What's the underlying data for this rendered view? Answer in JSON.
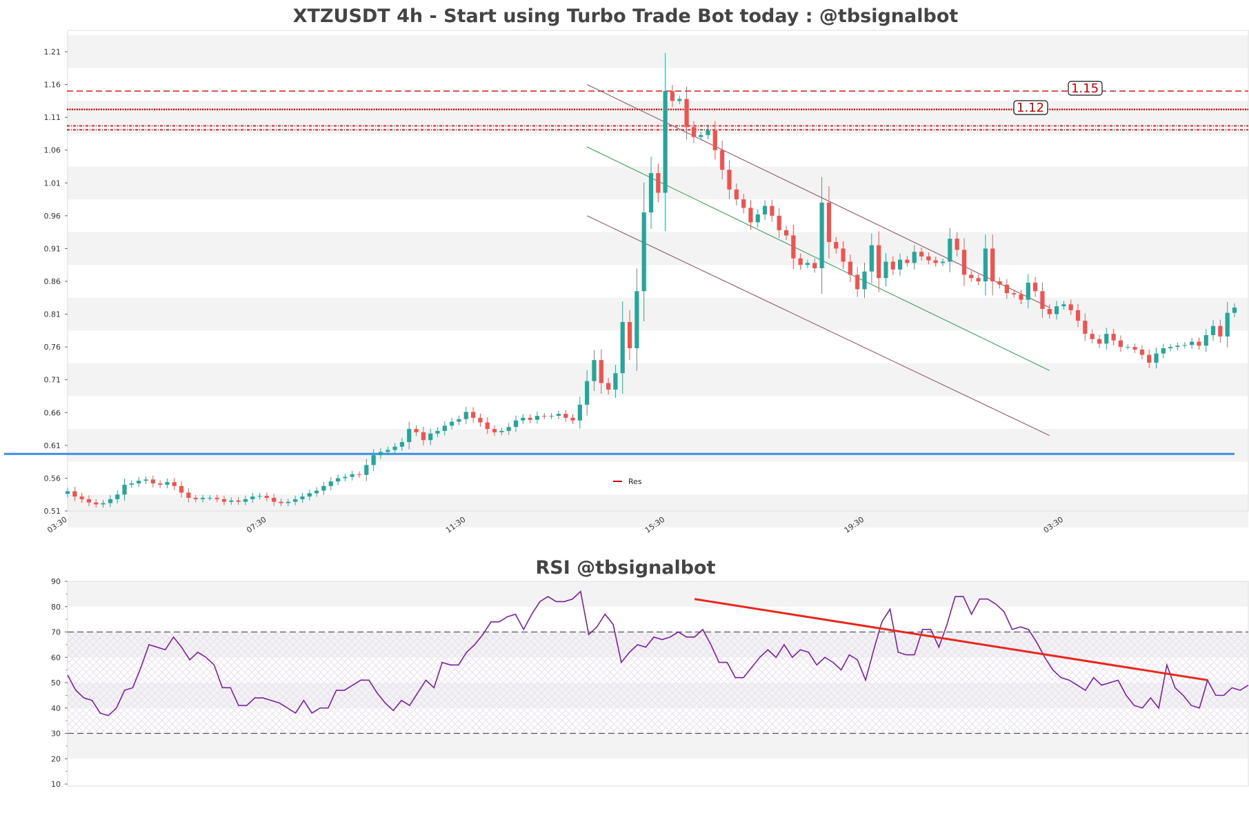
{
  "chart_data": [
    {
      "type": "candlestick",
      "title": "XTZUSDT 4h - Start using Turbo Trade Bot today : @tbsignalbot",
      "xlabel": "",
      "ylabel": "",
      "ylim": [
        0.51,
        1.24
      ],
      "y_ticks": [
        "1.21",
        "1.16",
        "1.11",
        "1.06",
        "1.01",
        "0.96",
        "0.91",
        "0.86",
        "0.81",
        "0.76",
        "0.71",
        "0.66",
        "0.61",
        "0.56",
        "0.51"
      ],
      "x_ticks": [
        "03:30",
        "07:30",
        "11:30",
        "15:30",
        "19:30",
        "03:30"
      ],
      "x_tick_positions": [
        0,
        28,
        56,
        84,
        112,
        140
      ],
      "grid": true,
      "legend": {
        "entries": [
          "Res"
        ],
        "placement": "lower-center"
      },
      "annotations": [
        "1.15",
        "1.12"
      ],
      "levels": [
        {
          "value": 1.15,
          "style": "dashed",
          "color": "#d62728",
          "label": "1.15"
        },
        {
          "value": 1.122,
          "style": "dotted",
          "color": "#cc0000",
          "label": "1.12"
        },
        {
          "value": 1.091,
          "style": "hatched",
          "color": "#d62728"
        },
        {
          "value": 1.097,
          "style": "hatched",
          "color": "#d62728"
        }
      ],
      "support_line": {
        "value": 0.597,
        "color": "#3a8ee6"
      },
      "channel": {
        "upper": [
          [
            73,
            1.16
          ],
          [
            138,
            0.82
          ]
        ],
        "middle": [
          [
            73,
            1.065
          ],
          [
            138,
            0.724
          ]
        ],
        "lower": [
          [
            73,
            0.96
          ],
          [
            138,
            0.625
          ]
        ]
      },
      "up_color": "#26a69a",
      "down_color": "#ef5350",
      "close": [
        0.54,
        0.532,
        0.528,
        0.523,
        0.52,
        0.522,
        0.528,
        0.535,
        0.55,
        0.552,
        0.556,
        0.558,
        0.552,
        0.55,
        0.554,
        0.548,
        0.538,
        0.53,
        0.528,
        0.53,
        0.53,
        0.528,
        0.524,
        0.526,
        0.524,
        0.528,
        0.532,
        0.533,
        0.53,
        0.524,
        0.522,
        0.524,
        0.528,
        0.532,
        0.537,
        0.541,
        0.548,
        0.555,
        0.56,
        0.562,
        0.566,
        0.565,
        0.58,
        0.595,
        0.6,
        0.603,
        0.608,
        0.615,
        0.635,
        0.63,
        0.618,
        0.628,
        0.632,
        0.64,
        0.646,
        0.65,
        0.661,
        0.652,
        0.645,
        0.635,
        0.63,
        0.632,
        0.638,
        0.648,
        0.652,
        0.649,
        0.655,
        0.654,
        0.655,
        0.658,
        0.652,
        0.648,
        0.672,
        0.708,
        0.74,
        0.705,
        0.695,
        0.72,
        0.798,
        0.758,
        0.845,
        0.965,
        1.025,
        0.995,
        1.15,
        1.135,
        1.138,
        1.095,
        1.08,
        1.083,
        1.09,
        1.06,
        1.03,
        1.0,
        0.985,
        0.972,
        0.95,
        0.962,
        0.975,
        0.96,
        0.938,
        0.93,
        0.895,
        0.885,
        0.888,
        0.88,
        0.98,
        0.92,
        0.91,
        0.89,
        0.87,
        0.848,
        0.875,
        0.915,
        0.865,
        0.89,
        0.878,
        0.893,
        0.888,
        0.905,
        0.898,
        0.892,
        0.888,
        0.89,
        0.925,
        0.908,
        0.87,
        0.865,
        0.86,
        0.91,
        0.86,
        0.855,
        0.842,
        0.84,
        0.832,
        0.858,
        0.845,
        0.818,
        0.81,
        0.822,
        0.825,
        0.816,
        0.8,
        0.78,
        0.772,
        0.765,
        0.78,
        0.77,
        0.76,
        0.76,
        0.756,
        0.748,
        0.736,
        0.75,
        0.758,
        0.76,
        0.762,
        0.763,
        0.768,
        0.762,
        0.778,
        0.792,
        0.776,
        0.812,
        0.82
      ]
    },
    {
      "type": "line",
      "title": "RSI @tbsignalbot",
      "xlabel": "",
      "ylabel": "",
      "ylim": [
        10,
        90
      ],
      "y_ticks": [
        "90",
        "80",
        "70",
        "60",
        "50",
        "40",
        "30",
        "20",
        "10"
      ],
      "grid": true,
      "bands": [
        {
          "from": 30,
          "to": 70,
          "style": "hatched",
          "color": "#e9dff0"
        }
      ],
      "reference_lines": [
        70,
        30
      ],
      "trendline": {
        "from": [
          77,
          83
        ],
        "to": [
          140,
          51
        ],
        "color": "#e8261c"
      },
      "series": [
        {
          "color": "#7b1fa2",
          "values": [
            53,
            47,
            44,
            43,
            38,
            37,
            40,
            47,
            48,
            56,
            65,
            64,
            63,
            68,
            64,
            59,
            62,
            60,
            57,
            48,
            48,
            41,
            41,
            44,
            44,
            43,
            42,
            40,
            38,
            43,
            38,
            40,
            40,
            47,
            47,
            49,
            51,
            51,
            46,
            42,
            39,
            43,
            41,
            46,
            51,
            48,
            58,
            57,
            57,
            62,
            65,
            69,
            74,
            74,
            76,
            77,
            71,
            77,
            82,
            84,
            82,
            82,
            83,
            86,
            69,
            72,
            77,
            73,
            58,
            62,
            65,
            64,
            68,
            67,
            68,
            70,
            68,
            68,
            71,
            65,
            58,
            58,
            52,
            52,
            56,
            60,
            63,
            60,
            65,
            60,
            63,
            62,
            57,
            60,
            58,
            55,
            61,
            59,
            51,
            63,
            74,
            79,
            62,
            61,
            61,
            71,
            71,
            64,
            73,
            84,
            84,
            77,
            83,
            83,
            81,
            78,
            71,
            72,
            71,
            66,
            60,
            55,
            52,
            51,
            49,
            47,
            52,
            49,
            50,
            51,
            45,
            41,
            40,
            44,
            40,
            57,
            48,
            45,
            41,
            40,
            51,
            45,
            45,
            48,
            47,
            49
          ]
        }
      ]
    }
  ]
}
